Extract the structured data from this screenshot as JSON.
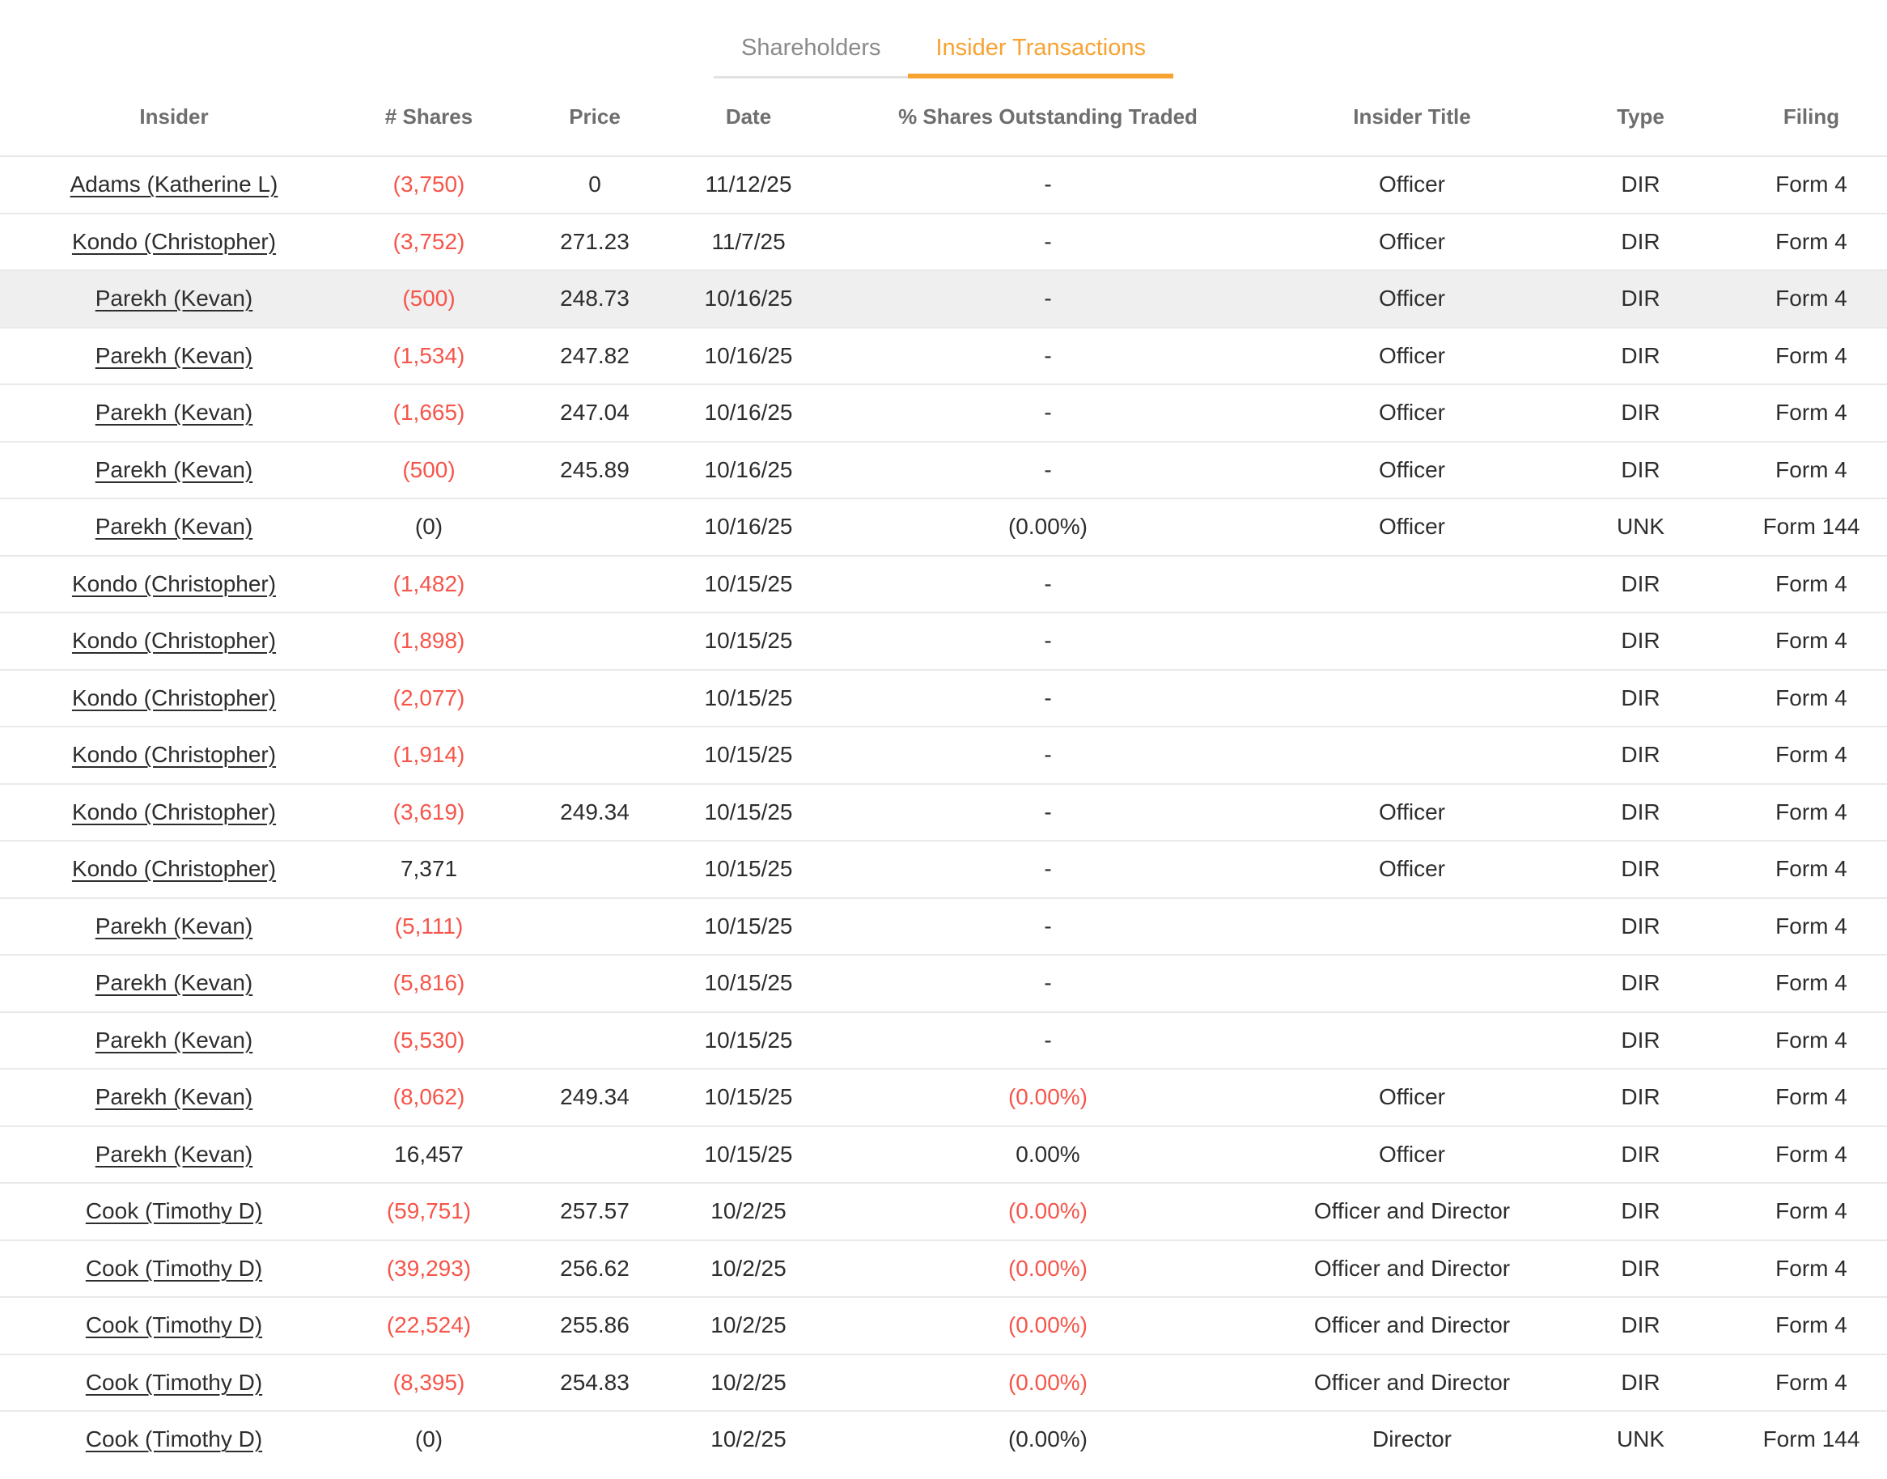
{
  "tabs": [
    {
      "label": "Shareholders",
      "active": false
    },
    {
      "label": "Insider Transactions",
      "active": true
    }
  ],
  "colors": {
    "accent_orange": "#f8a232",
    "negative_red": "#f6554a",
    "header_gray": "#6e6e6e",
    "body_text": "#2d2d2d",
    "inactive_tab_gray": "#8a8a8a",
    "row_highlight": "#efefef",
    "divider": "#e9e9e9"
  },
  "table": {
    "columns": [
      "Insider",
      "# Shares",
      "Price",
      "Date",
      "% Shares Outstanding Traded",
      "Insider Title",
      "Type",
      "Filing"
    ],
    "rows": [
      {
        "insider": "Adams (Katherine L)",
        "shares": {
          "text": "(3,750)",
          "neg": true
        },
        "price": "0",
        "date": "11/12/25",
        "pct": {
          "text": "-",
          "neg": false
        },
        "title": "Officer",
        "type": "DIR",
        "filing": "Form 4",
        "highlighted": false
      },
      {
        "insider": "Kondo (Christopher)",
        "shares": {
          "text": "(3,752)",
          "neg": true
        },
        "price": "271.23",
        "date": "11/7/25",
        "pct": {
          "text": "-",
          "neg": false
        },
        "title": "Officer",
        "type": "DIR",
        "filing": "Form 4",
        "highlighted": false
      },
      {
        "insider": "Parekh (Kevan)",
        "shares": {
          "text": "(500)",
          "neg": true
        },
        "price": "248.73",
        "date": "10/16/25",
        "pct": {
          "text": "-",
          "neg": false
        },
        "title": "Officer",
        "type": "DIR",
        "filing": "Form 4",
        "highlighted": true
      },
      {
        "insider": "Parekh (Kevan)",
        "shares": {
          "text": "(1,534)",
          "neg": true
        },
        "price": "247.82",
        "date": "10/16/25",
        "pct": {
          "text": "-",
          "neg": false
        },
        "title": "Officer",
        "type": "DIR",
        "filing": "Form 4",
        "highlighted": false
      },
      {
        "insider": "Parekh (Kevan)",
        "shares": {
          "text": "(1,665)",
          "neg": true
        },
        "price": "247.04",
        "date": "10/16/25",
        "pct": {
          "text": "-",
          "neg": false
        },
        "title": "Officer",
        "type": "DIR",
        "filing": "Form 4",
        "highlighted": false
      },
      {
        "insider": "Parekh (Kevan)",
        "shares": {
          "text": "(500)",
          "neg": true
        },
        "price": "245.89",
        "date": "10/16/25",
        "pct": {
          "text": "-",
          "neg": false
        },
        "title": "Officer",
        "type": "DIR",
        "filing": "Form 4",
        "highlighted": false
      },
      {
        "insider": "Parekh (Kevan)",
        "shares": {
          "text": "(0)",
          "neg": false
        },
        "price": "",
        "date": "10/16/25",
        "pct": {
          "text": "(0.00%)",
          "neg": false
        },
        "title": "Officer",
        "type": "UNK",
        "filing": "Form 144",
        "highlighted": false
      },
      {
        "insider": "Kondo (Christopher)",
        "shares": {
          "text": "(1,482)",
          "neg": true
        },
        "price": "",
        "date": "10/15/25",
        "pct": {
          "text": "-",
          "neg": false
        },
        "title": "",
        "type": "DIR",
        "filing": "Form 4",
        "highlighted": false
      },
      {
        "insider": "Kondo (Christopher)",
        "shares": {
          "text": "(1,898)",
          "neg": true
        },
        "price": "",
        "date": "10/15/25",
        "pct": {
          "text": "-",
          "neg": false
        },
        "title": "",
        "type": "DIR",
        "filing": "Form 4",
        "highlighted": false
      },
      {
        "insider": "Kondo (Christopher)",
        "shares": {
          "text": "(2,077)",
          "neg": true
        },
        "price": "",
        "date": "10/15/25",
        "pct": {
          "text": "-",
          "neg": false
        },
        "title": "",
        "type": "DIR",
        "filing": "Form 4",
        "highlighted": false
      },
      {
        "insider": "Kondo (Christopher)",
        "shares": {
          "text": "(1,914)",
          "neg": true
        },
        "price": "",
        "date": "10/15/25",
        "pct": {
          "text": "-",
          "neg": false
        },
        "title": "",
        "type": "DIR",
        "filing": "Form 4",
        "highlighted": false
      },
      {
        "insider": "Kondo (Christopher)",
        "shares": {
          "text": "(3,619)",
          "neg": true
        },
        "price": "249.34",
        "date": "10/15/25",
        "pct": {
          "text": "-",
          "neg": false
        },
        "title": "Officer",
        "type": "DIR",
        "filing": "Form 4",
        "highlighted": false
      },
      {
        "insider": "Kondo (Christopher)",
        "shares": {
          "text": "7,371",
          "neg": false
        },
        "price": "",
        "date": "10/15/25",
        "pct": {
          "text": "-",
          "neg": false
        },
        "title": "Officer",
        "type": "DIR",
        "filing": "Form 4",
        "highlighted": false
      },
      {
        "insider": "Parekh (Kevan)",
        "shares": {
          "text": "(5,111)",
          "neg": true
        },
        "price": "",
        "date": "10/15/25",
        "pct": {
          "text": "-",
          "neg": false
        },
        "title": "",
        "type": "DIR",
        "filing": "Form 4",
        "highlighted": false
      },
      {
        "insider": "Parekh (Kevan)",
        "shares": {
          "text": "(5,816)",
          "neg": true
        },
        "price": "",
        "date": "10/15/25",
        "pct": {
          "text": "-",
          "neg": false
        },
        "title": "",
        "type": "DIR",
        "filing": "Form 4",
        "highlighted": false
      },
      {
        "insider": "Parekh (Kevan)",
        "shares": {
          "text": "(5,530)",
          "neg": true
        },
        "price": "",
        "date": "10/15/25",
        "pct": {
          "text": "-",
          "neg": false
        },
        "title": "",
        "type": "DIR",
        "filing": "Form 4",
        "highlighted": false
      },
      {
        "insider": "Parekh (Kevan)",
        "shares": {
          "text": "(8,062)",
          "neg": true
        },
        "price": "249.34",
        "date": "10/15/25",
        "pct": {
          "text": "(0.00%)",
          "neg": true
        },
        "title": "Officer",
        "type": "DIR",
        "filing": "Form 4",
        "highlighted": false
      },
      {
        "insider": "Parekh (Kevan)",
        "shares": {
          "text": "16,457",
          "neg": false
        },
        "price": "",
        "date": "10/15/25",
        "pct": {
          "text": "0.00%",
          "neg": false
        },
        "title": "Officer",
        "type": "DIR",
        "filing": "Form 4",
        "highlighted": false
      },
      {
        "insider": "Cook (Timothy D)",
        "shares": {
          "text": "(59,751)",
          "neg": true
        },
        "price": "257.57",
        "date": "10/2/25",
        "pct": {
          "text": "(0.00%)",
          "neg": true
        },
        "title": "Officer and Director",
        "type": "DIR",
        "filing": "Form 4",
        "highlighted": false
      },
      {
        "insider": "Cook (Timothy D)",
        "shares": {
          "text": "(39,293)",
          "neg": true
        },
        "price": "256.62",
        "date": "10/2/25",
        "pct": {
          "text": "(0.00%)",
          "neg": true
        },
        "title": "Officer and Director",
        "type": "DIR",
        "filing": "Form 4",
        "highlighted": false
      },
      {
        "insider": "Cook (Timothy D)",
        "shares": {
          "text": "(22,524)",
          "neg": true
        },
        "price": "255.86",
        "date": "10/2/25",
        "pct": {
          "text": "(0.00%)",
          "neg": true
        },
        "title": "Officer and Director",
        "type": "DIR",
        "filing": "Form 4",
        "highlighted": false
      },
      {
        "insider": "Cook (Timothy D)",
        "shares": {
          "text": "(8,395)",
          "neg": true
        },
        "price": "254.83",
        "date": "10/2/25",
        "pct": {
          "text": "(0.00%)",
          "neg": true
        },
        "title": "Officer and Director",
        "type": "DIR",
        "filing": "Form 4",
        "highlighted": false
      },
      {
        "insider": "Cook (Timothy D)",
        "shares": {
          "text": "(0)",
          "neg": false
        },
        "price": "",
        "date": "10/2/25",
        "pct": {
          "text": "(0.00%)",
          "neg": false
        },
        "title": "Director",
        "type": "UNK",
        "filing": "Form 144",
        "highlighted": false
      }
    ]
  }
}
